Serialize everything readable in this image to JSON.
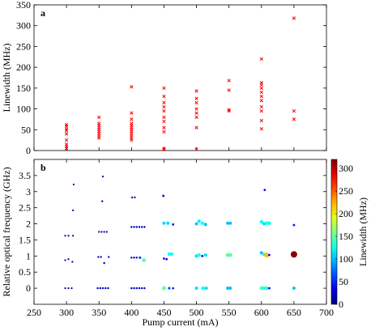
{
  "chart_data": [
    {
      "panel": "a",
      "type": "scatter",
      "xlabel": "",
      "ylabel": "Linewidth (MHz)",
      "xlim": [
        250,
        700
      ],
      "ylim": [
        0,
        350
      ],
      "yticks": [
        0,
        50,
        100,
        150,
        200,
        250,
        300,
        350
      ],
      "marker": "x",
      "color": "#ff0000",
      "points": [
        {
          "x": 300,
          "y": 5
        },
        {
          "x": 300,
          "y": 10
        },
        {
          "x": 300,
          "y": 15
        },
        {
          "x": 300,
          "y": 25
        },
        {
          "x": 300,
          "y": 40
        },
        {
          "x": 300,
          "y": 48
        },
        {
          "x": 300,
          "y": 52
        },
        {
          "x": 300,
          "y": 58
        },
        {
          "x": 300,
          "y": 62
        },
        {
          "x": 350,
          "y": 30
        },
        {
          "x": 350,
          "y": 35
        },
        {
          "x": 350,
          "y": 40
        },
        {
          "x": 350,
          "y": 45
        },
        {
          "x": 350,
          "y": 50
        },
        {
          "x": 350,
          "y": 55
        },
        {
          "x": 350,
          "y": 60
        },
        {
          "x": 350,
          "y": 65
        },
        {
          "x": 350,
          "y": 80
        },
        {
          "x": 400,
          "y": 25
        },
        {
          "x": 400,
          "y": 30
        },
        {
          "x": 400,
          "y": 35
        },
        {
          "x": 400,
          "y": 40
        },
        {
          "x": 400,
          "y": 45
        },
        {
          "x": 400,
          "y": 50
        },
        {
          "x": 400,
          "y": 55
        },
        {
          "x": 400,
          "y": 60
        },
        {
          "x": 400,
          "y": 65
        },
        {
          "x": 400,
          "y": 75
        },
        {
          "x": 400,
          "y": 90
        },
        {
          "x": 400,
          "y": 153
        },
        {
          "x": 450,
          "y": 2
        },
        {
          "x": 450,
          "y": 5
        },
        {
          "x": 450,
          "y": 45
        },
        {
          "x": 450,
          "y": 55
        },
        {
          "x": 450,
          "y": 70
        },
        {
          "x": 450,
          "y": 80
        },
        {
          "x": 450,
          "y": 95
        },
        {
          "x": 450,
          "y": 105
        },
        {
          "x": 450,
          "y": 115
        },
        {
          "x": 450,
          "y": 130
        },
        {
          "x": 450,
          "y": 150
        },
        {
          "x": 500,
          "y": 3
        },
        {
          "x": 500,
          "y": 55
        },
        {
          "x": 500,
          "y": 80
        },
        {
          "x": 500,
          "y": 90
        },
        {
          "x": 500,
          "y": 100
        },
        {
          "x": 500,
          "y": 115
        },
        {
          "x": 500,
          "y": 125
        },
        {
          "x": 500,
          "y": 143
        },
        {
          "x": 550,
          "y": 95
        },
        {
          "x": 550,
          "y": 98
        },
        {
          "x": 550,
          "y": 145
        },
        {
          "x": 550,
          "y": 168
        },
        {
          "x": 600,
          "y": 52
        },
        {
          "x": 600,
          "y": 72
        },
        {
          "x": 600,
          "y": 95
        },
        {
          "x": 600,
          "y": 105
        },
        {
          "x": 600,
          "y": 120
        },
        {
          "x": 600,
          "y": 130
        },
        {
          "x": 600,
          "y": 140
        },
        {
          "x": 600,
          "y": 150
        },
        {
          "x": 600,
          "y": 158
        },
        {
          "x": 600,
          "y": 163
        },
        {
          "x": 600,
          "y": 220
        },
        {
          "x": 650,
          "y": 75
        },
        {
          "x": 650,
          "y": 95
        },
        {
          "x": 650,
          "y": 318
        }
      ]
    },
    {
      "panel": "b",
      "type": "scatter",
      "xlabel": "Pump current (mA)",
      "ylabel": "Relative optical frequency (GHz)",
      "xlim": [
        250,
        700
      ],
      "ylim": [
        -0.5,
        4
      ],
      "xticks": [
        250,
        300,
        350,
        400,
        450,
        500,
        550,
        600,
        650,
        700
      ],
      "yticks": [
        0,
        0.5,
        1,
        1.5,
        2,
        2.5,
        3,
        3.5
      ],
      "colorbar": {
        "label": "Linewidth (MHz)",
        "min": 0,
        "max": 320,
        "ticks": [
          0,
          50,
          100,
          150,
          200,
          250,
          300
        ]
      },
      "points": [
        {
          "x": 298,
          "y": 0,
          "lw": 10
        },
        {
          "x": 303,
          "y": 0,
          "lw": 10
        },
        {
          "x": 308,
          "y": 0,
          "lw": 10
        },
        {
          "x": 298,
          "y": 0.87,
          "lw": 15
        },
        {
          "x": 303,
          "y": 0.9,
          "lw": 15
        },
        {
          "x": 309,
          "y": 0.82,
          "lw": 15
        },
        {
          "x": 298,
          "y": 1.63,
          "lw": 10
        },
        {
          "x": 303,
          "y": 1.63,
          "lw": 10
        },
        {
          "x": 310,
          "y": 1.63,
          "lw": 10
        },
        {
          "x": 310,
          "y": 2.42,
          "lw": 10
        },
        {
          "x": 311,
          "y": 3.22,
          "lw": 10
        },
        {
          "x": 348,
          "y": 0,
          "lw": 20
        },
        {
          "x": 352,
          "y": 0,
          "lw": 20
        },
        {
          "x": 356,
          "y": 0,
          "lw": 20
        },
        {
          "x": 360,
          "y": 0,
          "lw": 20
        },
        {
          "x": 364,
          "y": 0,
          "lw": 20
        },
        {
          "x": 349,
          "y": 0.97,
          "lw": 20
        },
        {
          "x": 353,
          "y": 0.97,
          "lw": 20
        },
        {
          "x": 358,
          "y": 0.78,
          "lw": 25
        },
        {
          "x": 365,
          "y": 0.97,
          "lw": 20
        },
        {
          "x": 350,
          "y": 1.75,
          "lw": 15
        },
        {
          "x": 354,
          "y": 1.75,
          "lw": 15
        },
        {
          "x": 358,
          "y": 1.75,
          "lw": 15
        },
        {
          "x": 362,
          "y": 1.75,
          "lw": 15
        },
        {
          "x": 355,
          "y": 2.7,
          "lw": 20
        },
        {
          "x": 356,
          "y": 3.47,
          "lw": 10
        },
        {
          "x": 400,
          "y": 0,
          "lw": 25
        },
        {
          "x": 404,
          "y": 0,
          "lw": 25
        },
        {
          "x": 408,
          "y": 0,
          "lw": 25
        },
        {
          "x": 412,
          "y": 0,
          "lw": 25
        },
        {
          "x": 416,
          "y": 0,
          "lw": 25
        },
        {
          "x": 420,
          "y": 0,
          "lw": 25
        },
        {
          "x": 400,
          "y": 0.95,
          "lw": 25
        },
        {
          "x": 404,
          "y": 0.95,
          "lw": 25
        },
        {
          "x": 408,
          "y": 0.95,
          "lw": 25
        },
        {
          "x": 413,
          "y": 0.95,
          "lw": 50
        },
        {
          "x": 419,
          "y": 0.87,
          "lw": 150
        },
        {
          "x": 400,
          "y": 1.9,
          "lw": 25
        },
        {
          "x": 404,
          "y": 1.9,
          "lw": 25
        },
        {
          "x": 408,
          "y": 1.9,
          "lw": 25
        },
        {
          "x": 412,
          "y": 1.9,
          "lw": 25
        },
        {
          "x": 416,
          "y": 1.9,
          "lw": 25
        },
        {
          "x": 420,
          "y": 1.9,
          "lw": 25
        },
        {
          "x": 401,
          "y": 2.82,
          "lw": 15
        },
        {
          "x": 405,
          "y": 2.82,
          "lw": 15
        },
        {
          "x": 450,
          "y": 0,
          "lw": 150
        },
        {
          "x": 458,
          "y": 0,
          "lw": 70
        },
        {
          "x": 464,
          "y": 0,
          "lw": 30
        },
        {
          "x": 450,
          "y": 0.92,
          "lw": 40
        },
        {
          "x": 454,
          "y": 0.9,
          "lw": 40
        },
        {
          "x": 458,
          "y": 1.06,
          "lw": 120
        },
        {
          "x": 462,
          "y": 1.06,
          "lw": 120
        },
        {
          "x": 450,
          "y": 2.02,
          "lw": 110
        },
        {
          "x": 456,
          "y": 2.02,
          "lw": 110
        },
        {
          "x": 464,
          "y": 1.98,
          "lw": 40
        },
        {
          "x": 449,
          "y": 2.87,
          "lw": 50
        },
        {
          "x": 500,
          "y": 0,
          "lw": 110
        },
        {
          "x": 510,
          "y": 0,
          "lw": 120
        },
        {
          "x": 515,
          "y": 0,
          "lw": 110
        },
        {
          "x": 500,
          "y": 1.0,
          "lw": 110
        },
        {
          "x": 504,
          "y": 1.03,
          "lw": 130
        },
        {
          "x": 509,
          "y": 1.0,
          "lw": 40
        },
        {
          "x": 514,
          "y": 1.03,
          "lw": 110
        },
        {
          "x": 500,
          "y": 2.0,
          "lw": 100
        },
        {
          "x": 504,
          "y": 2.08,
          "lw": 115
        },
        {
          "x": 509,
          "y": 2.02,
          "lw": 130
        },
        {
          "x": 514,
          "y": 1.98,
          "lw": 100
        },
        {
          "x": 548,
          "y": 0,
          "lw": 100
        },
        {
          "x": 552,
          "y": 0,
          "lw": 100
        },
        {
          "x": 548,
          "y": 1.03,
          "lw": 150
        },
        {
          "x": 552,
          "y": 1.03,
          "lw": 150
        },
        {
          "x": 548,
          "y": 2.02,
          "lw": 100
        },
        {
          "x": 552,
          "y": 2.02,
          "lw": 100
        },
        {
          "x": 600,
          "y": 0,
          "lw": 140
        },
        {
          "x": 604,
          "y": 0,
          "lw": 140
        },
        {
          "x": 608,
          "y": 0,
          "lw": 120
        },
        {
          "x": 612,
          "y": 0,
          "lw": 40
        },
        {
          "x": 600,
          "y": 1.1,
          "lw": 100
        },
        {
          "x": 604,
          "y": 1.05,
          "lw": 120
        },
        {
          "x": 608,
          "y": 1.03,
          "lw": 220
        },
        {
          "x": 612,
          "y": 1.03,
          "lw": 40
        },
        {
          "x": 600,
          "y": 2.06,
          "lw": 120
        },
        {
          "x": 604,
          "y": 2.0,
          "lw": 110
        },
        {
          "x": 608,
          "y": 2.02,
          "lw": 130
        },
        {
          "x": 612,
          "y": 2.02,
          "lw": 130
        },
        {
          "x": 605,
          "y": 3.05,
          "lw": 40
        },
        {
          "x": 650,
          "y": 0,
          "lw": 100
        },
        {
          "x": 650,
          "y": 1.05,
          "lw": 318
        },
        {
          "x": 650,
          "y": 1.96,
          "lw": 50
        }
      ]
    }
  ]
}
